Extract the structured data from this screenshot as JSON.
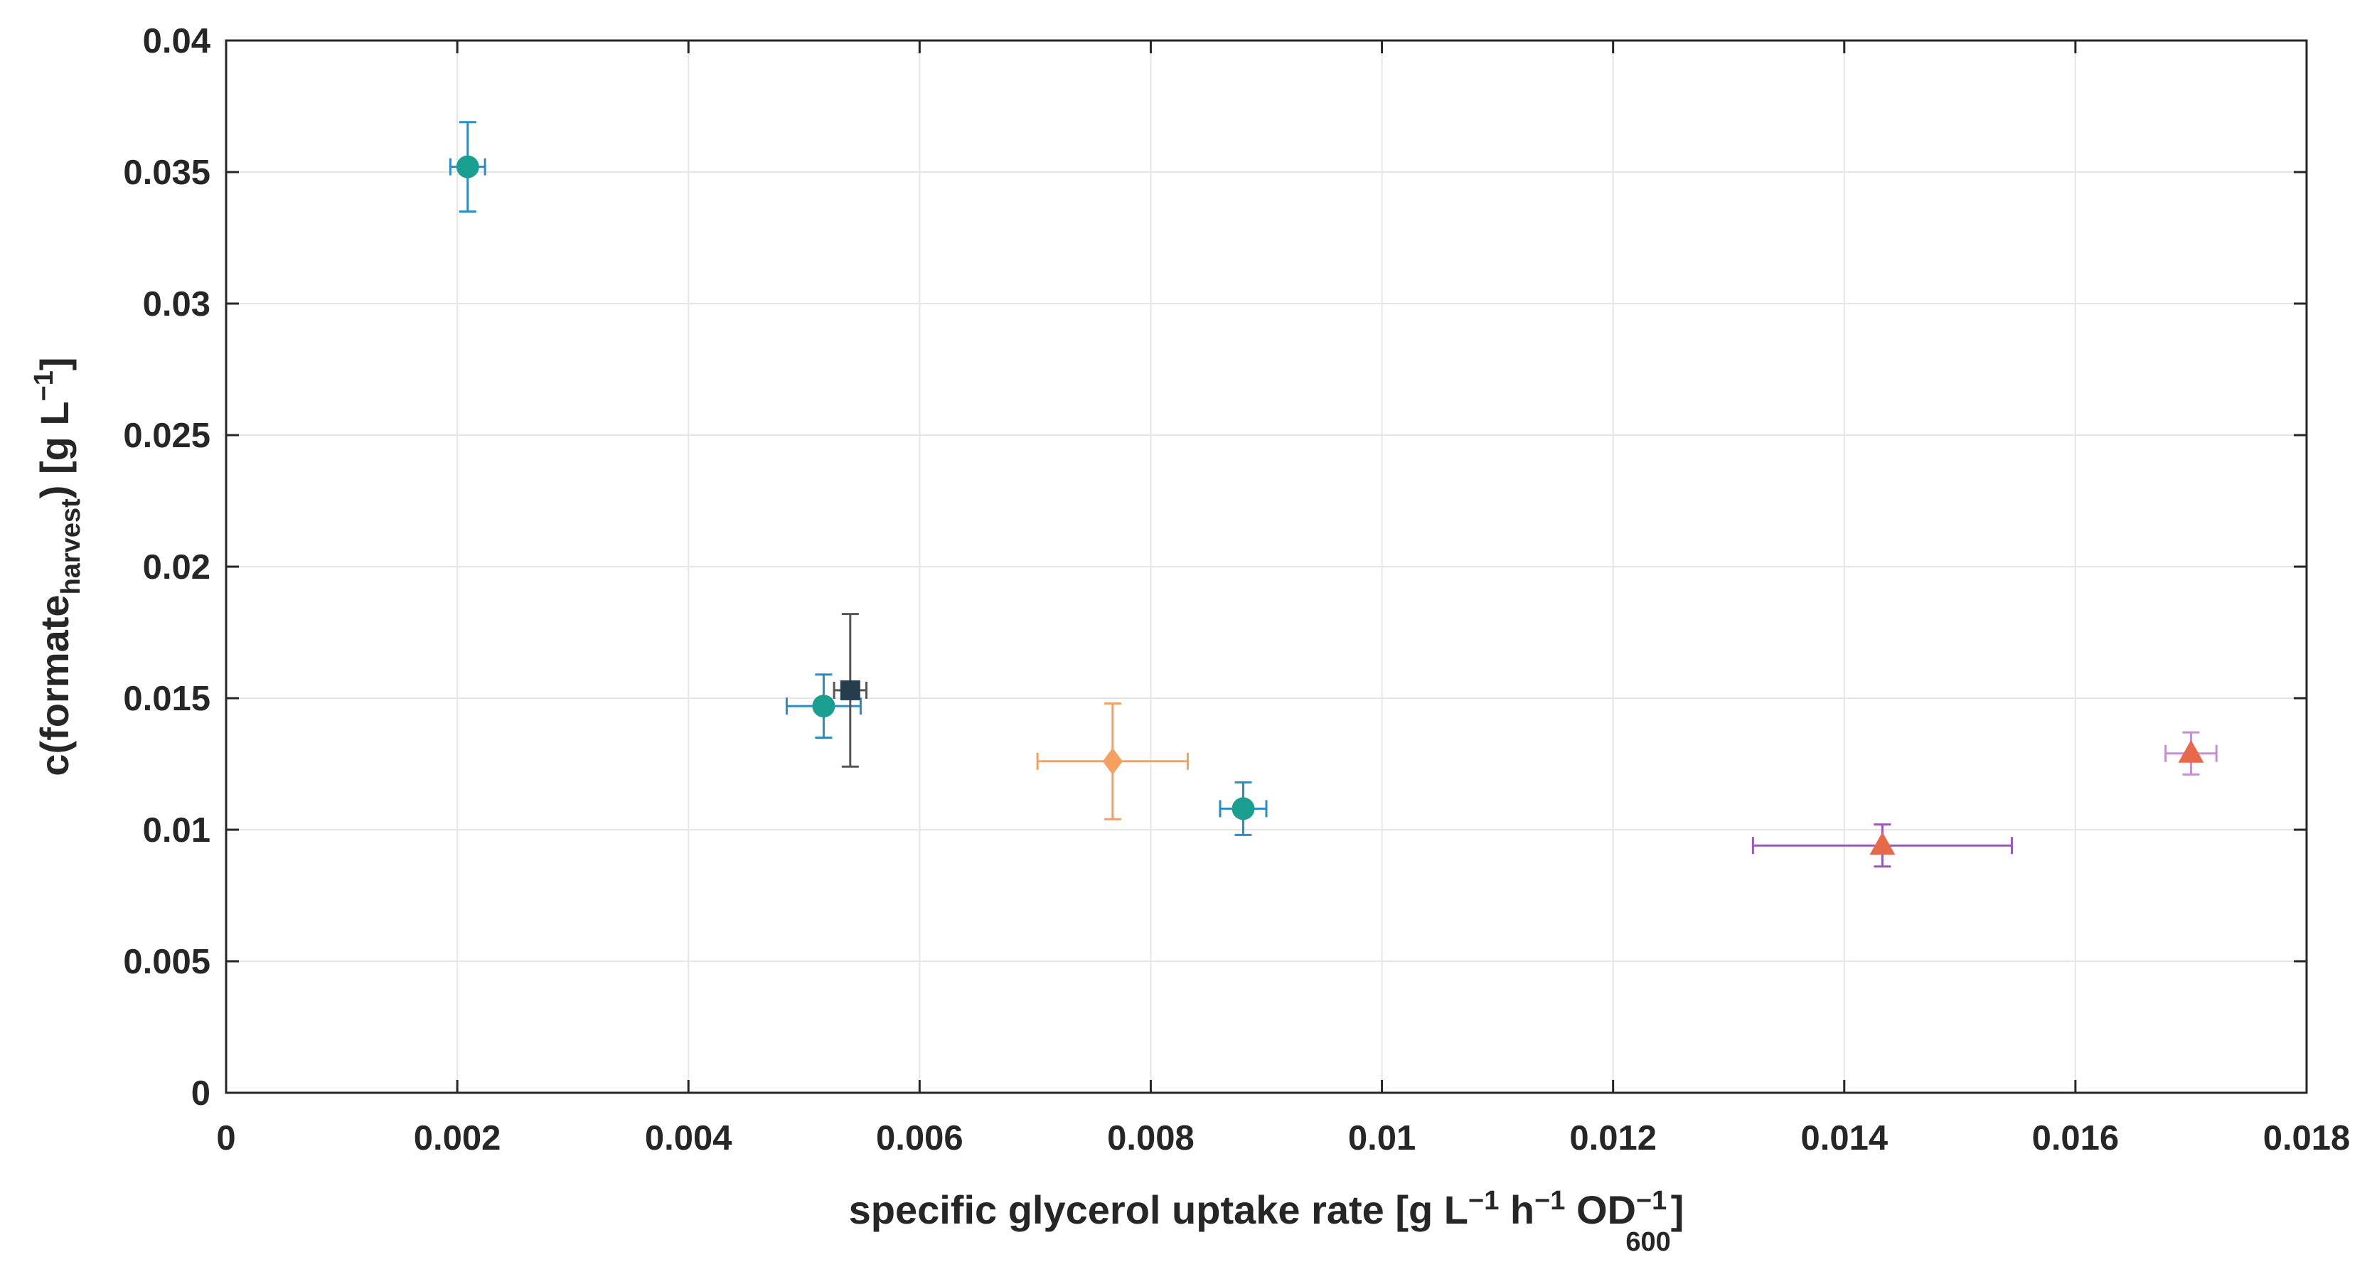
{
  "chart_data": {
    "type": "scatter",
    "title": "",
    "xlabel": {
      "main": "specific glycerol uptake rate [g L",
      "exp1": "−1",
      "mid1": " h",
      "exp2": "−1",
      "mid2": " OD",
      "sup": "−1",
      "sub": "600",
      "end": "]"
    },
    "ylabel": {
      "pre": "c(formate",
      "sub": "harvest",
      "mid": ") [g L",
      "exp": "−1",
      "end": "]"
    },
    "xlim": [
      0,
      0.018
    ],
    "ylim": [
      0,
      0.04
    ],
    "xticks": [
      0,
      0.002,
      0.004,
      0.006,
      0.008,
      0.01,
      0.012,
      0.014,
      0.016,
      0.018
    ],
    "xtick_labels": [
      "0",
      "0.002",
      "0.004",
      "0.006",
      "0.008",
      "0.01",
      "0.012",
      "0.014",
      "0.016",
      "0.018"
    ],
    "yticks": [
      0,
      0.005,
      0.01,
      0.015,
      0.02,
      0.025,
      0.03,
      0.035,
      0.04
    ],
    "ytick_labels": [
      "0",
      "0.005",
      "0.01",
      "0.015",
      "0.02",
      "0.025",
      "0.03",
      "0.035",
      "0.04"
    ],
    "grid": true,
    "points": [
      {
        "x": 0.00209,
        "y": 0.0352,
        "xerr": 0.00015,
        "yerr": 0.0017,
        "marker": "circle",
        "color": "#1a9e8f",
        "errcolor": "#2b8cc4"
      },
      {
        "x": 0.00517,
        "y": 0.0147,
        "xerr": 0.00032,
        "yerr": 0.0012,
        "marker": "circle",
        "color": "#1a9e8f",
        "errcolor": "#2b8cc4"
      },
      {
        "x": 0.0054,
        "y": 0.0153,
        "xerr": 0.00014,
        "yerr": 0.0029,
        "marker": "square",
        "color": "#253d4d",
        "errcolor": "#555555"
      },
      {
        "x": 0.00767,
        "y": 0.0126,
        "xerr": 0.00065,
        "yerr": 0.0022,
        "marker": "diamond",
        "color": "#f5a060",
        "errcolor": "#f5a060"
      },
      {
        "x": 0.0088,
        "y": 0.0108,
        "xerr": 0.0002,
        "yerr": 0.001,
        "marker": "circle",
        "color": "#1a9e8f",
        "errcolor": "#2b8cc4"
      },
      {
        "x": 0.01433,
        "y": 0.0094,
        "xerr": 0.00112,
        "yerr": 0.0008,
        "marker": "triangle",
        "color": "#e8684a",
        "errcolor": "#9b59b6"
      },
      {
        "x": 0.017,
        "y": 0.0129,
        "xerr": 0.00022,
        "yerr": 0.0008,
        "marker": "triangle",
        "color": "#e8684a",
        "errcolor": "#c48fd1"
      }
    ]
  }
}
